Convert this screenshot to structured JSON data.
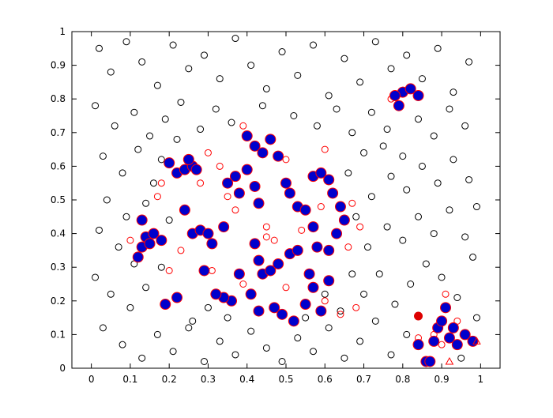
{
  "chart_data": {
    "type": "scatter",
    "xlim": [
      -0.05,
      1.05
    ],
    "ylim": [
      0,
      1
    ],
    "xticks": [
      0,
      0.1,
      0.2,
      0.3,
      0.4,
      0.5,
      0.6,
      0.7,
      0.8,
      0.9,
      1
    ],
    "yticks": [
      0,
      0.1,
      0.2,
      0.3,
      0.4,
      0.5,
      0.6,
      0.7,
      0.8,
      0.9,
      1
    ],
    "series": [
      {
        "color": "#000000",
        "marker": "circle",
        "filled": false,
        "x": [
          0.02,
          0.05,
          0.09,
          0.13,
          0.17,
          0.21,
          0.25,
          0.29,
          0.33,
          0.37,
          0.41,
          0.45,
          0.49,
          0.53,
          0.57,
          0.61,
          0.65,
          0.69,
          0.73,
          0.77,
          0.81,
          0.85,
          0.89,
          0.93,
          0.97,
          0.01,
          0.06,
          0.11,
          0.15,
          0.19,
          0.23,
          0.28,
          0.32,
          0.36,
          0.44,
          0.52,
          0.58,
          0.63,
          0.67,
          0.72,
          0.76,
          0.84,
          0.88,
          0.92,
          0.96,
          0.03,
          0.08,
          0.12,
          0.16,
          0.04,
          0.09,
          0.14,
          0.02,
          0.07,
          0.11,
          0.01,
          0.05,
          0.1,
          0.14,
          0.03,
          0.08,
          0.13,
          0.17,
          0.21,
          0.25,
          0.29,
          0.33,
          0.37,
          0.41,
          0.45,
          0.49,
          0.53,
          0.57,
          0.61,
          0.65,
          0.69,
          0.73,
          0.77,
          0.81,
          0.7,
          0.74,
          0.78,
          0.82,
          0.86,
          0.9,
          0.94,
          0.98,
          0.71,
          0.76,
          0.8,
          0.84,
          0.88,
          0.92,
          0.96,
          0.72,
          0.77,
          0.81,
          0.85,
          0.89,
          0.93,
          0.97,
          0.7,
          0.75,
          0.8,
          0.68,
          0.66,
          0.99,
          0.99,
          0.95,
          0.18,
          0.22,
          0.26,
          0.3,
          0.18,
          0.2,
          0.35,
          0.55,
          0.6,
          0.64,
          0.67
        ],
        "values": [
          0.95,
          0.88,
          0.97,
          0.91,
          0.84,
          0.96,
          0.89,
          0.93,
          0.86,
          0.98,
          0.9,
          0.83,
          0.94,
          0.87,
          0.96,
          0.81,
          0.92,
          0.85,
          0.97,
          0.89,
          0.93,
          0.86,
          0.95,
          0.82,
          0.91,
          0.78,
          0.72,
          0.76,
          0.69,
          0.74,
          0.79,
          0.71,
          0.77,
          0.73,
          0.78,
          0.75,
          0.72,
          0.77,
          0.7,
          0.76,
          0.71,
          0.74,
          0.69,
          0.77,
          0.72,
          0.63,
          0.58,
          0.65,
          0.55,
          0.5,
          0.45,
          0.49,
          0.41,
          0.36,
          0.31,
          0.27,
          0.22,
          0.18,
          0.24,
          0.12,
          0.07,
          0.03,
          0.1,
          0.05,
          0.12,
          0.02,
          0.08,
          0.04,
          0.11,
          0.06,
          0.02,
          0.09,
          0.05,
          0.12,
          0.03,
          0.08,
          0.14,
          0.04,
          0.1,
          0.22,
          0.28,
          0.19,
          0.25,
          0.31,
          0.27,
          0.21,
          0.33,
          0.36,
          0.42,
          0.38,
          0.45,
          0.4,
          0.47,
          0.39,
          0.51,
          0.57,
          0.53,
          0.6,
          0.55,
          0.62,
          0.56,
          0.64,
          0.66,
          0.63,
          0.45,
          0.58,
          0.48,
          0.15,
          0.03,
          0.62,
          0.68,
          0.14,
          0.18,
          0.3,
          0.44,
          0.15,
          0.15,
          0.22,
          0.17,
          0.28
        ]
      },
      {
        "color": "#ff0000",
        "marker": "circle",
        "filled": false,
        "x": [
          0.1,
          0.17,
          0.18,
          0.28,
          0.3,
          0.33,
          0.35,
          0.37,
          0.39,
          0.45,
          0.45,
          0.47,
          0.5,
          0.54,
          0.59,
          0.6,
          0.66,
          0.67,
          0.69,
          0.2,
          0.23,
          0.31,
          0.39,
          0.5,
          0.6,
          0.64,
          0.68,
          0.77,
          0.88,
          0.9,
          0.84,
          0.91,
          0.94
        ],
        "values": [
          0.38,
          0.51,
          0.55,
          0.55,
          0.64,
          0.6,
          0.51,
          0.47,
          0.72,
          0.39,
          0.42,
          0.38,
          0.62,
          0.41,
          0.48,
          0.65,
          0.36,
          0.49,
          0.42,
          0.29,
          0.35,
          0.29,
          0.25,
          0.24,
          0.2,
          0.16,
          0.18,
          0.8,
          0.1,
          0.07,
          0.09,
          0.22,
          0.14
        ]
      },
      {
        "color": "#0000cc",
        "edgecolor": "#ff0000",
        "marker": "circle",
        "filled": true,
        "x": [
          0.2,
          0.22,
          0.24,
          0.26,
          0.27,
          0.25,
          0.12,
          0.13,
          0.14,
          0.15,
          0.16,
          0.18,
          0.13,
          0.19,
          0.22,
          0.24,
          0.26,
          0.28,
          0.3,
          0.31,
          0.29,
          0.34,
          0.35,
          0.37,
          0.38,
          0.4,
          0.42,
          0.44,
          0.46,
          0.4,
          0.42,
          0.43,
          0.48,
          0.5,
          0.51,
          0.53,
          0.55,
          0.57,
          0.59,
          0.61,
          0.62,
          0.64,
          0.65,
          0.63,
          0.61,
          0.58,
          0.57,
          0.42,
          0.43,
          0.44,
          0.46,
          0.48,
          0.51,
          0.53,
          0.38,
          0.36,
          0.34,
          0.32,
          0.41,
          0.43,
          0.47,
          0.49,
          0.52,
          0.55,
          0.57,
          0.59,
          0.61,
          0.56,
          0.79,
          0.8,
          0.82,
          0.84,
          0.78,
          0.86,
          0.87,
          0.88,
          0.89,
          0.9,
          0.91,
          0.92,
          0.93,
          0.94,
          0.96,
          0.98,
          0.84
        ],
        "values": [
          0.61,
          0.58,
          0.59,
          0.6,
          0.59,
          0.62,
          0.33,
          0.36,
          0.39,
          0.37,
          0.4,
          0.38,
          0.44,
          0.19,
          0.21,
          0.47,
          0.4,
          0.41,
          0.4,
          0.37,
          0.29,
          0.42,
          0.55,
          0.57,
          0.52,
          0.69,
          0.66,
          0.64,
          0.68,
          0.59,
          0.54,
          0.49,
          0.63,
          0.55,
          0.52,
          0.48,
          0.47,
          0.57,
          0.58,
          0.56,
          0.52,
          0.48,
          0.44,
          0.4,
          0.35,
          0.36,
          0.42,
          0.37,
          0.32,
          0.28,
          0.29,
          0.31,
          0.34,
          0.35,
          0.28,
          0.2,
          0.21,
          0.22,
          0.22,
          0.17,
          0.18,
          0.16,
          0.14,
          0.19,
          0.24,
          0.17,
          0.26,
          0.28,
          0.78,
          0.82,
          0.83,
          0.81,
          0.81,
          0.02,
          0.02,
          0.08,
          0.12,
          0.14,
          0.18,
          0.09,
          0.12,
          0.07,
          0.1,
          0.08,
          0.07
        ]
      },
      {
        "color": "#dd0000",
        "marker": "circle",
        "filled": true,
        "x": [
          0.84
        ],
        "values": [
          0.155
        ]
      },
      {
        "color": "#ff0000",
        "marker": "triangle",
        "filled": false,
        "x": [
          0.92,
          0.99
        ],
        "values": [
          0.02,
          0.08
        ]
      }
    ]
  }
}
